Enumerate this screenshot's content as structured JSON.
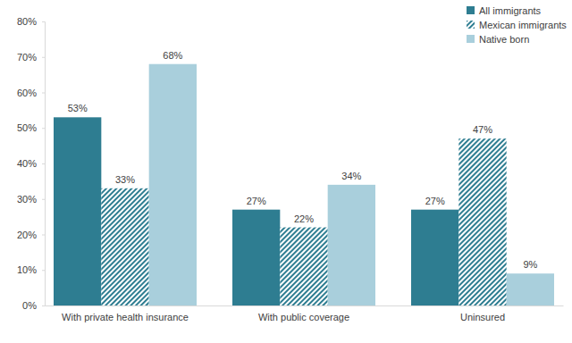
{
  "chart_data": {
    "type": "bar",
    "categories": [
      "With private health insurance",
      "With public coverage",
      "Uninsured"
    ],
    "series": [
      {
        "name": "All immigrants",
        "color": "#2e7d91",
        "values": [
          53,
          27,
          27
        ],
        "value_labels": [
          "53%",
          "27%",
          "27%"
        ]
      },
      {
        "name": "Mexican immigrants",
        "color": "#2e7d91",
        "line_style": "hatched",
        "values": [
          33,
          22,
          47
        ],
        "value_labels": [
          "33%",
          "22%",
          "47%"
        ]
      },
      {
        "name": "Native born",
        "color": "#a9cfdc",
        "values": [
          68,
          34,
          9
        ],
        "value_labels": [
          "68%",
          "34%",
          "9%"
        ]
      }
    ],
    "ylim": [
      0,
      80
    ],
    "yticks": [
      {
        "value": 0,
        "label": "0%"
      },
      {
        "value": 10,
        "label": "10%"
      },
      {
        "value": 20,
        "label": "20%"
      },
      {
        "value": 30,
        "label": "30%"
      },
      {
        "value": 40,
        "label": "40%"
      },
      {
        "value": 50,
        "label": "50%"
      },
      {
        "value": 60,
        "label": "60%"
      },
      {
        "value": 70,
        "label": "70%"
      },
      {
        "value": 80,
        "label": "80%"
      }
    ],
    "grid": false,
    "legend": "top-right",
    "data_labels": true
  }
}
